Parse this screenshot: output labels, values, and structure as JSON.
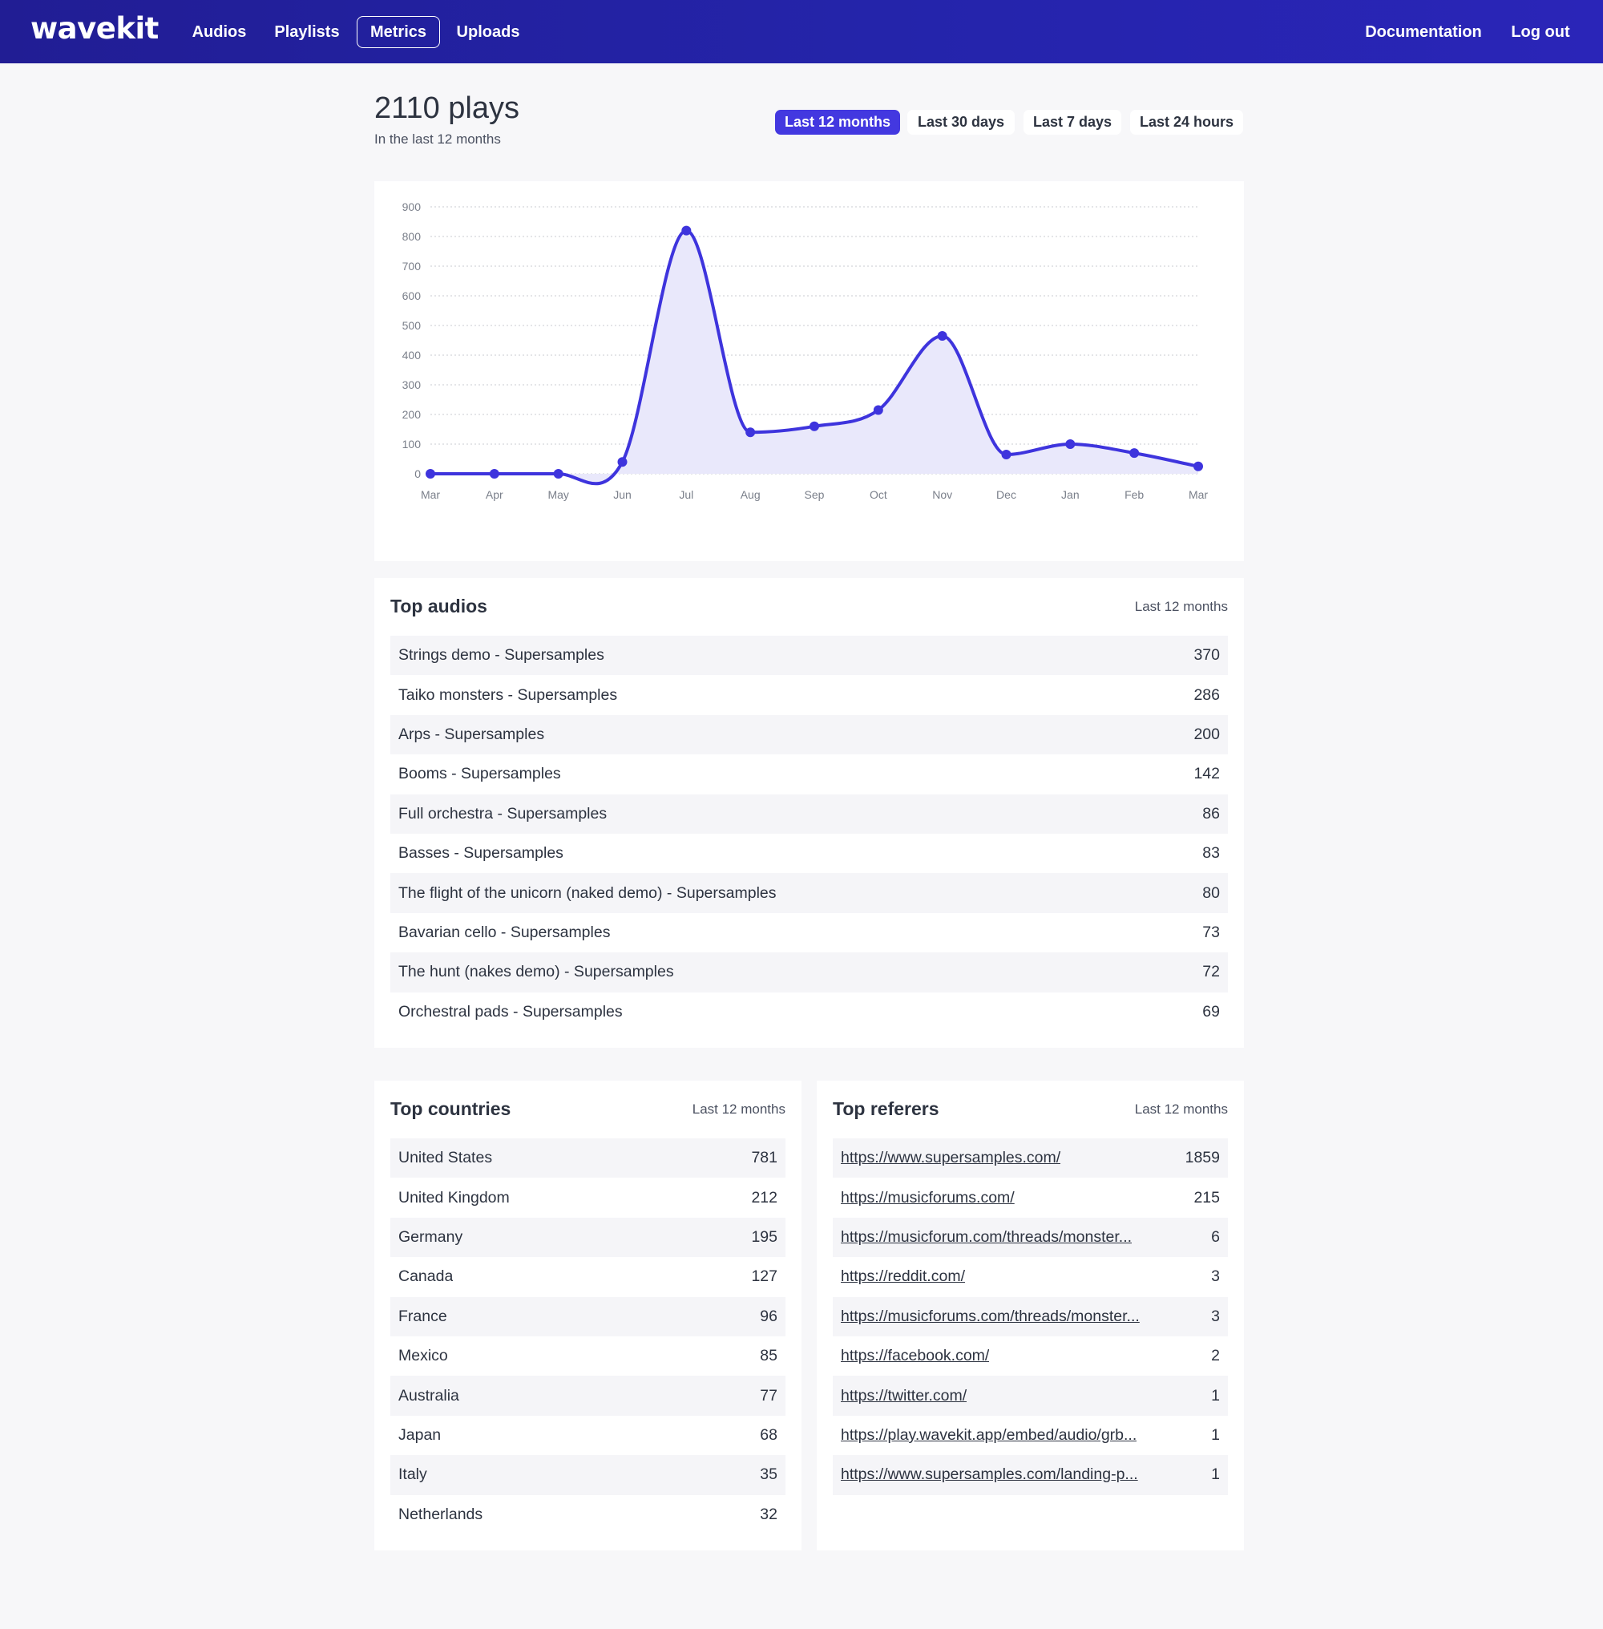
{
  "nav": {
    "logo": "wavekit",
    "links": [
      {
        "label": "Audios",
        "active": false
      },
      {
        "label": "Playlists",
        "active": false
      },
      {
        "label": "Metrics",
        "active": true
      },
      {
        "label": "Uploads",
        "active": false
      }
    ],
    "right_links": [
      {
        "label": "Documentation"
      },
      {
        "label": "Log out"
      }
    ]
  },
  "header": {
    "title": "2110 plays",
    "subtitle": "In the last 12 months",
    "ranges": [
      {
        "label": "Last 12 months",
        "active": true
      },
      {
        "label": "Last 30 days",
        "active": false
      },
      {
        "label": "Last 7 days",
        "active": false
      },
      {
        "label": "Last 24 hours",
        "active": false
      }
    ]
  },
  "chart_data": {
    "type": "area",
    "categories": [
      "Mar",
      "Apr",
      "May",
      "Jun",
      "Jul",
      "Aug",
      "Sep",
      "Oct",
      "Nov",
      "Dec",
      "Jan",
      "Feb",
      "Mar"
    ],
    "values": [
      0,
      0,
      0,
      40,
      820,
      140,
      160,
      215,
      465,
      65,
      100,
      70,
      25
    ],
    "ylim": [
      0,
      900
    ],
    "yticks": [
      0,
      100,
      200,
      300,
      400,
      500,
      600,
      700,
      800,
      900
    ],
    "grid": true,
    "colors": {
      "line": "#3e34dd",
      "fill": "#e9e8fb"
    }
  },
  "top_audios": {
    "title": "Top audios",
    "range": "Last 12 months",
    "rows": [
      {
        "name": "Strings demo - Supersamples",
        "value": "370"
      },
      {
        "name": "Taiko monsters - Supersamples",
        "value": "286"
      },
      {
        "name": "Arps - Supersamples",
        "value": "200"
      },
      {
        "name": "Booms - Supersamples",
        "value": "142"
      },
      {
        "name": "Full orchestra - Supersamples",
        "value": "86"
      },
      {
        "name": "Basses - Supersamples",
        "value": "83"
      },
      {
        "name": "The flight of the unicorn (naked demo) - Supersamples",
        "value": "80"
      },
      {
        "name": "Bavarian cello - Supersamples",
        "value": "73"
      },
      {
        "name": "The hunt (nakes demo) - Supersamples",
        "value": "72"
      },
      {
        "name": "Orchestral pads - Supersamples",
        "value": "69"
      }
    ]
  },
  "top_countries": {
    "title": "Top countries",
    "range": "Last 12 months",
    "rows": [
      {
        "name": "United States",
        "value": "781"
      },
      {
        "name": "United Kingdom",
        "value": "212"
      },
      {
        "name": "Germany",
        "value": "195"
      },
      {
        "name": "Canada",
        "value": "127"
      },
      {
        "name": "France",
        "value": "96"
      },
      {
        "name": "Mexico",
        "value": "85"
      },
      {
        "name": "Australia",
        "value": "77"
      },
      {
        "name": "Japan",
        "value": "68"
      },
      {
        "name": "Italy",
        "value": "35"
      },
      {
        "name": "Netherlands",
        "value": "32"
      }
    ]
  },
  "top_referers": {
    "title": "Top referers",
    "range": "Last 12 months",
    "rows": [
      {
        "name": "https://www.supersamples.com/",
        "value": "1859"
      },
      {
        "name": "https://musicforums.com/",
        "value": "215"
      },
      {
        "name": "https://musicforum.com/threads/monster...",
        "value": "6"
      },
      {
        "name": "https://reddit.com/",
        "value": "3"
      },
      {
        "name": "https://musicforums.com/threads/monster...",
        "value": "3"
      },
      {
        "name": "https://facebook.com/",
        "value": "2"
      },
      {
        "name": "https://twitter.com/",
        "value": "1"
      },
      {
        "name": "https://play.wavekit.app/embed/audio/grb...",
        "value": "1"
      },
      {
        "name": "https://www.supersamples.com/landing-p...",
        "value": "1"
      }
    ]
  }
}
